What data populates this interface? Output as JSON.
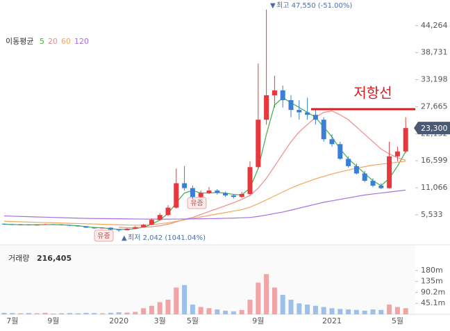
{
  "chart_data": {
    "type": "candlestick",
    "legend_title": "이동평균",
    "high_note": "최고 47,550 (-51.00%)",
    "low_note": "최저 2,042 (1041.04%)",
    "events": [
      {
        "label": "유증"
      },
      {
        "label": "유증"
      }
    ],
    "resistance": {
      "label": "저항선",
      "value": 27150,
      "color": "#e0191f"
    },
    "price_label": {
      "value": 23300,
      "label": "23,300"
    },
    "volume_title": "거래량",
    "volume_label": "216,405",
    "up_color": "#e8383d",
    "down_color": "#3a7fd5",
    "vol_up_color": "#f2a3a6",
    "vol_down_color": "#9cc0ea",
    "categories": [
      null,
      "7월",
      null,
      null,
      null,
      null,
      "9월",
      null,
      null,
      null,
      null,
      null,
      null,
      null,
      "2020",
      null,
      null,
      null,
      null,
      "3월",
      null,
      null,
      null,
      "5월",
      null,
      null,
      null,
      null,
      null,
      null,
      null,
      "9월",
      null,
      null,
      null,
      null,
      null,
      null,
      null,
      null,
      "2021",
      null,
      null,
      null,
      null,
      null,
      null,
      null,
      "5월",
      null
    ],
    "candles": [
      [
        3700,
        3800,
        3500,
        3600
      ],
      [
        3600,
        3700,
        3400,
        3500
      ],
      [
        3500,
        3650,
        3450,
        3550
      ],
      [
        3550,
        3600,
        3350,
        3450
      ],
      [
        3450,
        3600,
        3400,
        3500
      ],
      [
        3500,
        3700,
        3450,
        3600
      ],
      [
        3600,
        3650,
        3450,
        3550
      ],
      [
        3550,
        3600,
        3350,
        3450
      ],
      [
        3450,
        3500,
        3200,
        3300
      ],
      [
        3300,
        3350,
        3100,
        3200
      ],
      [
        3200,
        3250,
        2850,
        2900
      ],
      [
        2900,
        3000,
        2700,
        2800
      ],
      [
        2800,
        3000,
        2750,
        2900
      ],
      [
        2900,
        2950,
        2400,
        2500
      ],
      [
        2500,
        2600,
        2042,
        2400
      ],
      [
        2400,
        2800,
        2350,
        2700
      ],
      [
        2700,
        3200,
        2650,
        3000
      ],
      [
        3000,
        3700,
        2950,
        3500
      ],
      [
        3500,
        4800,
        3400,
        4500
      ],
      [
        4500,
        5900,
        4300,
        5500
      ],
      [
        5500,
        7500,
        5300,
        7000
      ],
      [
        7000,
        15000,
        6800,
        12000
      ],
      [
        12000,
        15500,
        10500,
        11000
      ],
      [
        11000,
        11500,
        8800,
        9200
      ],
      [
        9200,
        10500,
        9000,
        10000
      ],
      [
        10000,
        11200,
        9800,
        10500
      ],
      [
        10500,
        10800,
        9700,
        10000
      ],
      [
        10000,
        10300,
        9200,
        9500
      ],
      [
        9500,
        9800,
        8900,
        9200
      ],
      [
        9200,
        10200,
        9000,
        9800
      ],
      [
        9800,
        16500,
        9600,
        15300
      ],
      [
        15300,
        36500,
        15000,
        25000
      ],
      [
        25000,
        47550,
        24000,
        30000
      ],
      [
        30000,
        34000,
        27500,
        31000
      ],
      [
        31000,
        32000,
        27500,
        29000
      ],
      [
        29000,
        30000,
        25500,
        27000
      ],
      [
        27000,
        29000,
        25000,
        26500
      ],
      [
        26500,
        29500,
        25000,
        26000
      ],
      [
        26000,
        27000,
        24000,
        25000
      ],
      [
        25000,
        25500,
        20500,
        21000
      ],
      [
        21000,
        22000,
        19500,
        20000
      ],
      [
        20000,
        20500,
        16800,
        17000
      ],
      [
        17000,
        17500,
        15200,
        15500
      ],
      [
        15500,
        16000,
        13800,
        14000
      ],
      [
        14000,
        14500,
        12200,
        12500
      ],
      [
        12500,
        13000,
        11200,
        11500
      ],
      [
        11500,
        12000,
        10800,
        11000
      ],
      [
        11000,
        20500,
        10900,
        17500
      ],
      [
        17500,
        19500,
        16500,
        18500
      ],
      [
        18500,
        25500,
        18200,
        23300
      ]
    ],
    "volume": [
      6,
      5,
      4,
      5,
      4,
      6,
      3,
      4,
      5,
      4,
      6,
      5,
      4,
      6,
      8,
      7,
      10,
      25,
      35,
      50,
      60,
      110,
      120,
      40,
      30,
      25,
      20,
      15,
      12,
      18,
      60,
      130,
      165,
      110,
      80,
      60,
      45,
      40,
      35,
      30,
      25,
      22,
      20,
      18,
      15,
      20,
      18,
      40,
      30,
      25
    ],
    "series": [
      {
        "name": "5",
        "color": "#3cb043",
        "values": [
          3600,
          3550,
          3520,
          3500,
          3500,
          3520,
          3530,
          3500,
          3400,
          3300,
          3100,
          2950,
          2850,
          2700,
          2550,
          2550,
          2700,
          3000,
          3600,
          4500,
          5800,
          8000,
          10000,
          10500,
          10000,
          10000,
          10100,
          10000,
          9700,
          9600,
          11000,
          15000,
          22000,
          28000,
          29500,
          28500,
          27500,
          26500,
          25500,
          23500,
          21500,
          19000,
          17000,
          15500,
          14000,
          12500,
          11500,
          13000,
          15500,
          18500
        ]
      },
      {
        "name": "20",
        "color": "#ef8a8a",
        "values": [
          null,
          null,
          null,
          null,
          null,
          null,
          null,
          null,
          null,
          null,
          null,
          null,
          null,
          null,
          3000,
          2900,
          2900,
          3000,
          3100,
          3300,
          3600,
          4100,
          4600,
          5000,
          5600,
          6200,
          6800,
          7400,
          8000,
          8700,
          9500,
          11000,
          13000,
          15500,
          18000,
          20500,
          22500,
          24000,
          25500,
          26500,
          26800,
          26000,
          25000,
          23500,
          22000,
          20500,
          19000,
          18000,
          17200,
          16700
        ]
      },
      {
        "name": "60",
        "color": "#f2a65a",
        "values": [
          4200,
          4150,
          4100,
          4050,
          4000,
          3950,
          3900,
          3850,
          3800,
          3750,
          3700,
          3650,
          3600,
          3550,
          3500,
          3450,
          3400,
          3450,
          3550,
          3700,
          3900,
          4200,
          4500,
          4800,
          5100,
          5400,
          5700,
          6000,
          6300,
          6600,
          7100,
          7800,
          8600,
          9400,
          10200,
          11000,
          11700,
          12300,
          12900,
          13400,
          13900,
          14300,
          14700,
          15100,
          15400,
          15700,
          15900,
          16100,
          16300,
          16500
        ]
      },
      {
        "name": "120",
        "color": "#a56ee6",
        "values": [
          5300,
          5250,
          5200,
          5150,
          5100,
          5050,
          5000,
          4950,
          4900,
          4850,
          4800,
          4780,
          4760,
          4740,
          4720,
          4700,
          4680,
          4660,
          4650,
          4650,
          4650,
          4660,
          4680,
          4700,
          4720,
          4750,
          4780,
          4820,
          4870,
          4930,
          5000,
          5200,
          5500,
          5800,
          6100,
          6500,
          6900,
          7300,
          7700,
          8100,
          8400,
          8700,
          9000,
          9300,
          9600,
          9800,
          10000,
          10200,
          10400,
          10600
        ]
      }
    ],
    "ylim": [
      400,
      49500
    ],
    "yticks": [
      {
        "value": 5533,
        "label": "5,533"
      },
      {
        "value": 11066,
        "label": "11,066"
      },
      {
        "value": 16599,
        "label": "16,599"
      },
      {
        "value": 22132,
        "label": "22,132"
      },
      {
        "value": 27665,
        "label": "27,665"
      },
      {
        "value": 33198,
        "label": "33,198"
      },
      {
        "value": 38731,
        "label": "38,731"
      },
      {
        "value": 44264,
        "label": "44,264"
      }
    ],
    "y2lim": [
      0,
      257
    ],
    "y2ticks": [
      {
        "value": 45.1,
        "label": "45.1m"
      },
      {
        "value": 90.2,
        "label": "90.2m"
      },
      {
        "value": 135,
        "label": "135m"
      },
      {
        "value": 180,
        "label": "180m"
      }
    ]
  }
}
